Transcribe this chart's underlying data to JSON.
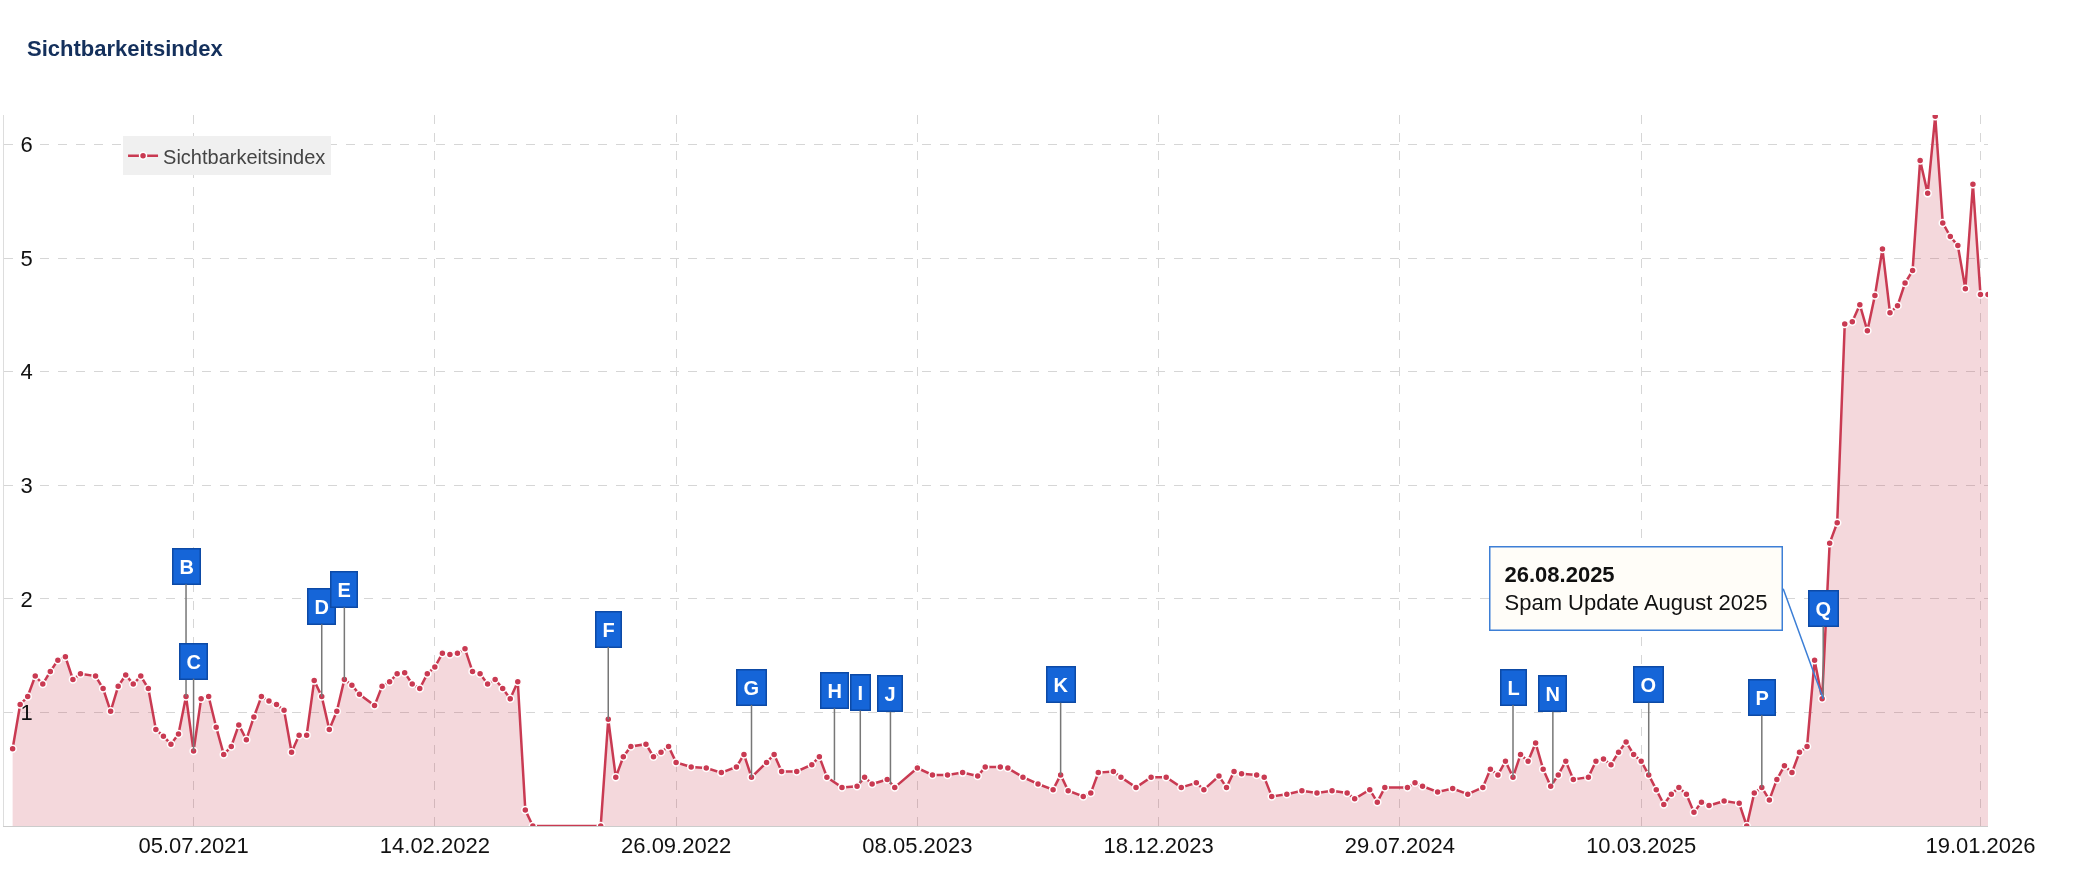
{
  "chart_data": {
    "type": "area",
    "title": "Sichtbarkeitsindex",
    "x": [
      "2021-01-18",
      "2021-01-25",
      "2021-02-01",
      "2021-02-08",
      "2021-02-15",
      "2021-02-22",
      "2021-03-01",
      "2021-03-08",
      "2021-03-15",
      "2021-03-22",
      "2021-04-05",
      "2021-04-12",
      "2021-04-19",
      "2021-04-26",
      "2021-05-03",
      "2021-05-10",
      "2021-05-17",
      "2021-05-24",
      "2021-05-31",
      "2021-06-07",
      "2021-06-14",
      "2021-06-21",
      "2021-06-28",
      "2021-07-05",
      "2021-07-12",
      "2021-07-19",
      "2021-07-26",
      "2021-08-02",
      "2021-08-09",
      "2021-08-16",
      "2021-08-23",
      "2021-08-30",
      "2021-09-06",
      "2021-09-13",
      "2021-09-20",
      "2021-09-27",
      "2021-10-04",
      "2021-10-11",
      "2021-10-18",
      "2021-10-25",
      "2021-11-01",
      "2021-11-08",
      "2021-11-15",
      "2021-11-22",
      "2021-11-29",
      "2021-12-06",
      "2021-12-20",
      "2021-12-27",
      "2022-01-03",
      "2022-01-10",
      "2022-01-17",
      "2022-01-24",
      "2022-01-31",
      "2022-02-07",
      "2022-02-14",
      "2022-02-21",
      "2022-02-28",
      "2022-03-07",
      "2022-03-14",
      "2022-03-21",
      "2022-03-28",
      "2022-04-04",
      "2022-04-11",
      "2022-04-18",
      "2022-04-25",
      "2022-05-02",
      "2022-05-09",
      "2022-05-16",
      "2022-07-18",
      "2022-07-25",
      "2022-08-01",
      "2022-08-08",
      "2022-08-15",
      "2022-08-29",
      "2022-09-05",
      "2022-09-12",
      "2022-09-19",
      "2022-09-26",
      "2022-10-10",
      "2022-10-24",
      "2022-11-07",
      "2022-11-21",
      "2022-11-28",
      "2022-12-05",
      "2022-12-19",
      "2022-12-26",
      "2023-01-02",
      "2023-01-16",
      "2023-01-30",
      "2023-02-06",
      "2023-02-13",
      "2023-02-27",
      "2023-03-13",
      "2023-03-20",
      "2023-03-27",
      "2023-04-10",
      "2023-04-17",
      "2023-05-08",
      "2023-05-22",
      "2023-06-05",
      "2023-06-19",
      "2023-07-03",
      "2023-07-10",
      "2023-07-24",
      "2023-07-31",
      "2023-08-14",
      "2023-08-28",
      "2023-09-11",
      "2023-09-18",
      "2023-09-25",
      "2023-10-09",
      "2023-10-16",
      "2023-10-23",
      "2023-11-06",
      "2023-11-13",
      "2023-11-27",
      "2023-12-11",
      "2023-12-25",
      "2024-01-08",
      "2024-01-22",
      "2024-01-29",
      "2024-02-12",
      "2024-02-19",
      "2024-02-26",
      "2024-03-04",
      "2024-03-18",
      "2024-03-25",
      "2024-04-01",
      "2024-04-15",
      "2024-04-29",
      "2024-05-13",
      "2024-05-27",
      "2024-06-10",
      "2024-06-17",
      "2024-07-01",
      "2024-07-08",
      "2024-07-15",
      "2024-08-05",
      "2024-08-12",
      "2024-08-19",
      "2024-09-02",
      "2024-09-16",
      "2024-09-30",
      "2024-10-14",
      "2024-10-21",
      "2024-10-28",
      "2024-11-04",
      "2024-11-11",
      "2024-11-18",
      "2024-11-25",
      "2024-12-02",
      "2024-12-09",
      "2024-12-16",
      "2024-12-23",
      "2024-12-30",
      "2025-01-06",
      "2025-01-20",
      "2025-01-27",
      "2025-02-03",
      "2025-02-10",
      "2025-02-17",
      "2025-02-24",
      "2025-03-03",
      "2025-03-10",
      "2025-03-17",
      "2025-03-24",
      "2025-03-31",
      "2025-04-07",
      "2025-04-14",
      "2025-04-21",
      "2025-04-28",
      "2025-05-05",
      "2025-05-12",
      "2025-05-26",
      "2025-06-09",
      "2025-06-16",
      "2025-06-23",
      "2025-06-30",
      "2025-07-07",
      "2025-07-14",
      "2025-07-21",
      "2025-07-28",
      "2025-08-04",
      "2025-08-11",
      "2025-08-18",
      "2025-08-25",
      "2025-09-01",
      "2025-09-08",
      "2025-09-15",
      "2025-09-22",
      "2025-09-29",
      "2025-10-06",
      "2025-10-13",
      "2025-10-20",
      "2025-10-27",
      "2025-11-03",
      "2025-11-10",
      "2025-11-17",
      "2025-11-24",
      "2025-12-01",
      "2025-12-08",
      "2025-12-15",
      "2025-12-22",
      "2025-12-29",
      "2026-01-05",
      "2026-01-12",
      "2026-01-19",
      "2026-01-26"
    ],
    "series": [
      {
        "name": "Sichtbarkeitsindex",
        "color": "#c93a52",
        "values": [
          0.68,
          1.07,
          1.14,
          1.32,
          1.25,
          1.36,
          1.46,
          1.49,
          1.29,
          1.34,
          1.32,
          1.21,
          1.01,
          1.23,
          1.33,
          1.25,
          1.32,
          1.21,
          0.85,
          0.79,
          0.72,
          0.81,
          1.14,
          0.66,
          1.12,
          1.14,
          0.87,
          0.63,
          0.7,
          0.89,
          0.76,
          0.96,
          1.14,
          1.1,
          1.07,
          1.02,
          0.65,
          0.8,
          0.8,
          1.28,
          1.14,
          0.85,
          1.01,
          1.29,
          1.24,
          1.16,
          1.06,
          1.23,
          1.27,
          1.34,
          1.35,
          1.25,
          1.21,
          1.34,
          1.4,
          1.52,
          1.51,
          1.52,
          1.56,
          1.36,
          1.34,
          1.25,
          1.29,
          1.21,
          1.12,
          1.27,
          0.14,
          0,
          0,
          0.94,
          0.43,
          0.61,
          0.7,
          0.72,
          0.61,
          0.65,
          0.7,
          0.56,
          0.52,
          0.51,
          0.47,
          0.52,
          0.63,
          0.43,
          0.56,
          0.63,
          0.48,
          0.48,
          0.54,
          0.61,
          0.43,
          0.34,
          0.35,
          0.43,
          0.37,
          0.41,
          0.34,
          0.51,
          0.45,
          0.45,
          0.47,
          0.44,
          0.52,
          0.52,
          0.51,
          0.43,
          0.37,
          0.32,
          0.45,
          0.31,
          0.26,
          0.29,
          0.47,
          0.48,
          0.43,
          0.34,
          0.43,
          0.43,
          0.34,
          0.38,
          0.32,
          0.44,
          0.34,
          0.48,
          0.46,
          0.45,
          0.43,
          0.26,
          0.28,
          0.31,
          0.29,
          0.31,
          0.29,
          0.24,
          0.32,
          0.21,
          0.34,
          0.34,
          0.38,
          0.35,
          0.3,
          0.33,
          0.28,
          0.34,
          0.5,
          0.45,
          0.57,
          0.43,
          0.63,
          0.57,
          0.73,
          0.5,
          0.35,
          0.45,
          0.57,
          0.41,
          0.43,
          0.57,
          0.59,
          0.54,
          0.65,
          0.74,
          0.63,
          0.57,
          0.45,
          0.32,
          0.19,
          0.28,
          0.34,
          0.28,
          0.12,
          0.21,
          0.18,
          0.22,
          0.2,
          0,
          0.29,
          0.34,
          0.23,
          0.41,
          0.53,
          0.47,
          0.65,
          0.7,
          1.46,
          1.12,
          2.49,
          2.67,
          4.42,
          4.44,
          4.59,
          4.36,
          4.67,
          5.08,
          4.52,
          4.58,
          4.78,
          4.89,
          5.86,
          5.57,
          6.25,
          5.31,
          5.19,
          5.11,
          4.73,
          5.65,
          4.68,
          4.68
        ]
      }
    ],
    "xlim": [
      "2021-01-10",
      "2026-01-26"
    ],
    "xticks": [
      {
        "value": "2021-07-05",
        "label": "05.07.2021"
      },
      {
        "value": "2022-02-14",
        "label": "14.02.2022"
      },
      {
        "value": "2022-09-26",
        "label": "26.09.2022"
      },
      {
        "value": "2023-05-08",
        "label": "08.05.2023"
      },
      {
        "value": "2023-12-18",
        "label": "18.12.2023"
      },
      {
        "value": "2024-07-29",
        "label": "29.07.2024"
      },
      {
        "value": "2025-03-10",
        "label": "10.03.2025"
      },
      {
        "value": "2026-01-19",
        "label": "19.01.2026"
      }
    ],
    "ylim": [
      0,
      6.26
    ],
    "yticks": [
      1,
      2,
      3,
      4,
      5,
      6
    ],
    "grid": true,
    "legend": "top left",
    "marker": "circle",
    "line_style": "solid",
    "annotations": [
      {
        "text": "B",
        "x": "2021-06-28",
        "y": 1.14
      },
      {
        "text": "C",
        "x": "2021-07-05",
        "y": 0.66
      },
      {
        "text": "D",
        "x": "2021-11-01",
        "y": 1.14
      },
      {
        "text": "E",
        "x": "2021-11-22",
        "y": 1.29
      },
      {
        "text": "F",
        "x": "2022-07-25",
        "y": 0.94
      },
      {
        "text": "G",
        "x": "2022-12-05",
        "y": 0.43
      },
      {
        "text": "H",
        "x": "2023-02-20",
        "y": 0.4
      },
      {
        "text": "I",
        "x": "2023-03-16",
        "y": 0.38
      },
      {
        "text": "J",
        "x": "2023-04-13",
        "y": 0.37
      },
      {
        "text": "K",
        "x": "2023-09-18",
        "y": 0.45
      },
      {
        "text": "L",
        "x": "2024-11-11",
        "y": 0.43
      },
      {
        "text": "N",
        "x": "2024-12-18",
        "y": 0.37
      },
      {
        "text": "O",
        "x": "2025-03-17",
        "y": 0.45
      },
      {
        "text": "P",
        "x": "2025-06-30",
        "y": 0.34
      },
      {
        "text": "Q",
        "x": "2025-08-26",
        "y": 1.12
      },
      {
        "text": "26.08.2025\nSpam Update August 2025",
        "x": "2025-08-26",
        "y": 1.12
      }
    ]
  }
}
